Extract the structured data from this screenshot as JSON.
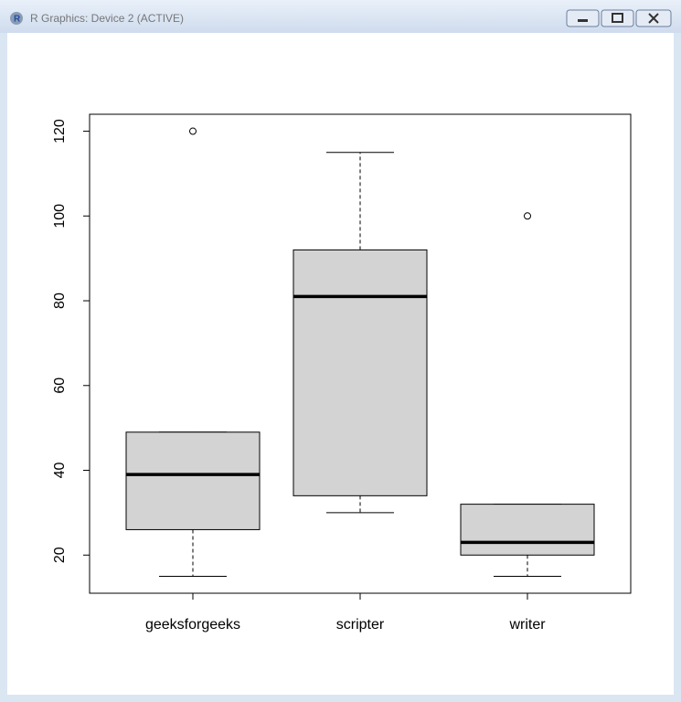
{
  "window": {
    "title": "R Graphics: Device 2 (ACTIVE)"
  },
  "chart_data": {
    "type": "box",
    "categories": [
      "geeksforgeeks",
      "scripter",
      "writer"
    ],
    "boxes": [
      {
        "min": 15,
        "q1": 26,
        "median": 39,
        "q3": 49,
        "max": 49,
        "outliers": [
          120
        ]
      },
      {
        "min": 30,
        "q1": 34,
        "median": 81,
        "q3": 92,
        "max": 115,
        "outliers": []
      },
      {
        "min": 15,
        "q1": 20,
        "median": 23,
        "q3": 32,
        "max": 32,
        "outliers": [
          100
        ]
      }
    ],
    "color": "#d3d3d3",
    "ylim": [
      11,
      124
    ],
    "yticks": [
      20,
      40,
      60,
      80,
      100,
      120
    ]
  }
}
